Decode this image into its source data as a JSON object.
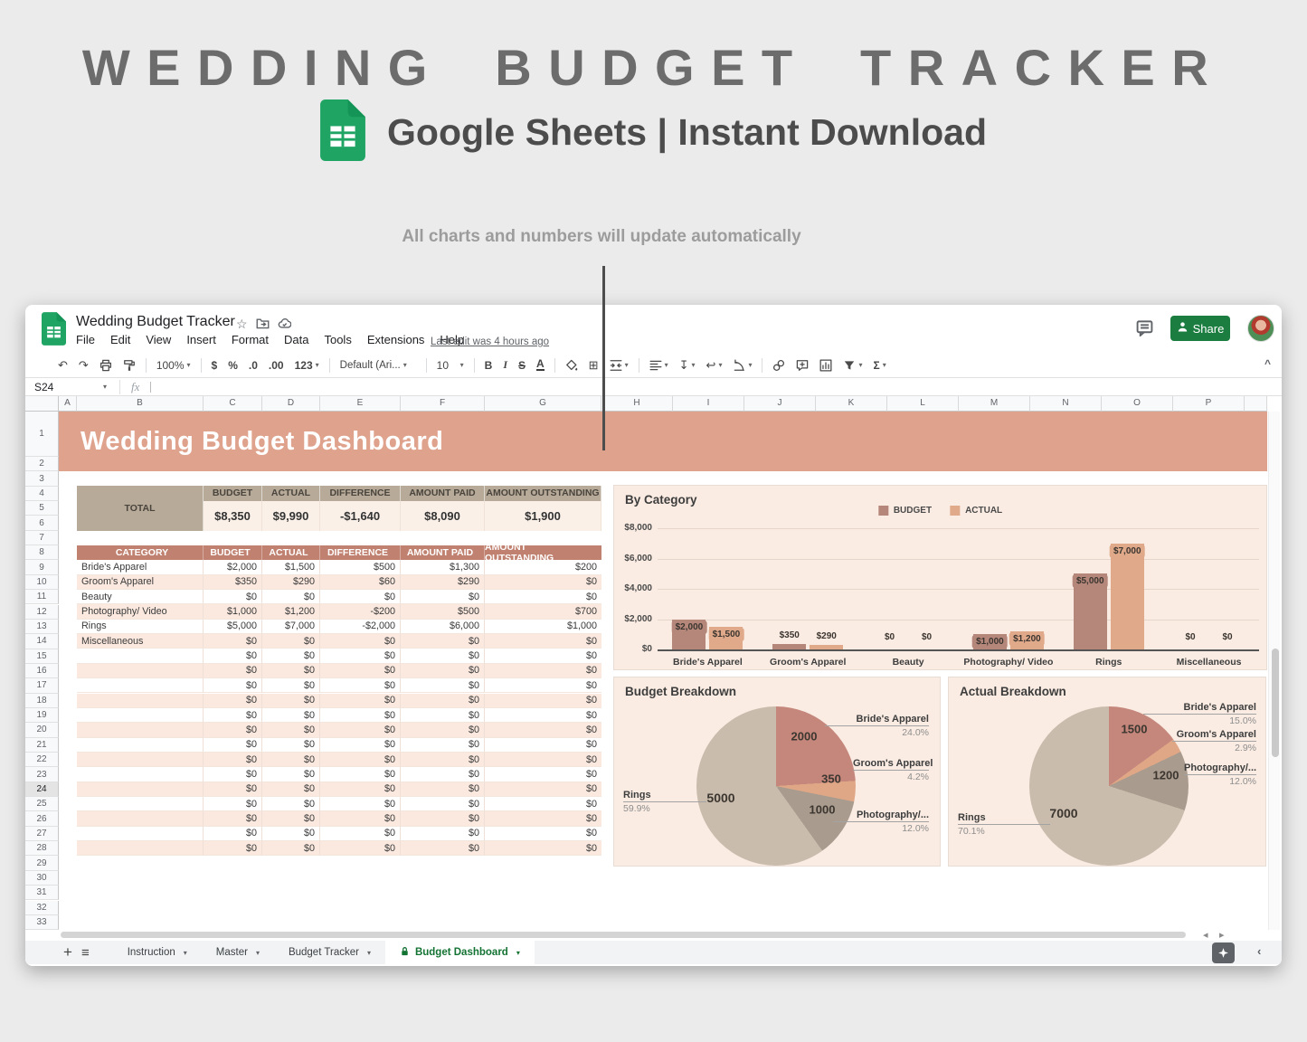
{
  "page": {
    "title": "WEDDING BUDGET TRACKER",
    "subtitle": "Google Sheets | Instant Download",
    "annotation": "All charts and numbers will update automatically"
  },
  "window": {
    "doc_title": "Wedding Budget Tracker",
    "menus": [
      "File",
      "Edit",
      "View",
      "Insert",
      "Format",
      "Data",
      "Tools",
      "Extensions",
      "Help"
    ],
    "last_edit": "Last edit was 4 hours ago",
    "share_label": "Share",
    "name_box": "S24",
    "toolbar_items": [
      {
        "name": "undo-icon",
        "glyph": "↶"
      },
      {
        "name": "redo-icon",
        "glyph": "↷"
      },
      {
        "name": "print-icon"
      },
      {
        "name": "paint-format-icon"
      },
      {
        "sep": true
      },
      {
        "name": "zoom-select",
        "text": "100%",
        "dd": true
      },
      {
        "sep": true
      },
      {
        "name": "currency-format-button",
        "text": "$"
      },
      {
        "name": "percent-format-button",
        "text": "%"
      },
      {
        "name": "decrease-decimals-button",
        "text": ".0"
      },
      {
        "name": "increase-decimals-button",
        "text": ".00"
      },
      {
        "name": "more-formats-button",
        "text": "123",
        "dd": true
      },
      {
        "sep": true
      },
      {
        "name": "font-select",
        "text": "Default (Ari...",
        "dd": true
      },
      {
        "sep": true
      },
      {
        "name": "font-size-select",
        "text": "10",
        "dd": true
      },
      {
        "sep": true
      },
      {
        "name": "bold-button",
        "text": "B"
      },
      {
        "name": "italic-button",
        "text": "I"
      },
      {
        "name": "strikethrough-button",
        "text": "S"
      },
      {
        "name": "text-color-button",
        "text": "A"
      },
      {
        "sep": true
      },
      {
        "name": "fill-color-icon"
      },
      {
        "name": "borders-icon",
        "glyph": "⊞"
      },
      {
        "name": "merge-cells-icon",
        "dd": true
      },
      {
        "sep": true
      },
      {
        "name": "horizontal-align-icon",
        "dd": true
      },
      {
        "name": "vertical-align-icon",
        "glyph": "↧",
        "dd": true
      },
      {
        "name": "text-wrap-icon",
        "glyph": "↩",
        "dd": true
      },
      {
        "name": "text-rotate-icon",
        "dd": true
      },
      {
        "sep": true
      },
      {
        "name": "link-icon"
      },
      {
        "name": "add-comment-icon"
      },
      {
        "name": "insert-chart-icon"
      },
      {
        "name": "filter-icon",
        "dd": true
      },
      {
        "name": "functions-button",
        "text": "Σ",
        "dd": true
      }
    ],
    "column_headers": [
      "A",
      "B",
      "C",
      "D",
      "E",
      "F",
      "G",
      "H",
      "I",
      "J",
      "K",
      "L",
      "M",
      "N",
      "O",
      "P"
    ],
    "row_count": 33,
    "selected_row": 24,
    "sheet_tabs": [
      {
        "label": "Instruction"
      },
      {
        "label": "Master"
      },
      {
        "label": "Budget Tracker"
      },
      {
        "label": "Budget Dashboard",
        "active": true,
        "locked": true
      }
    ]
  },
  "sheet": {
    "banner_title": "Wedding Budget Dashboard",
    "total": {
      "label": "TOTAL",
      "headers": [
        "BUDGET",
        "ACTUAL",
        "DIFFERENCE",
        "AMOUNT PAID",
        "AMOUNT OUTSTANDING"
      ],
      "values": [
        "$8,350",
        "$9,990",
        "-$1,640",
        "$8,090",
        "$1,900"
      ]
    },
    "category_table": {
      "headers": [
        "CATEGORY",
        "BUDGET",
        "ACTUAL",
        "DIFFERENCE",
        "AMOUNT PAID",
        "AMOUNT OUTSTANDING"
      ],
      "rows": [
        [
          "Bride's Apparel",
          "$2,000",
          "$1,500",
          "$500",
          "$1,300",
          "$200"
        ],
        [
          "Groom's Apparel",
          "$350",
          "$290",
          "$60",
          "$290",
          "$0"
        ],
        [
          "Beauty",
          "$0",
          "$0",
          "$0",
          "$0",
          "$0"
        ],
        [
          "Photography/ Video",
          "$1,000",
          "$1,200",
          "-$200",
          "$500",
          "$700"
        ],
        [
          "Rings",
          "$5,000",
          "$7,000",
          "-$2,000",
          "$6,000",
          "$1,000"
        ],
        [
          "Miscellaneous",
          "$0",
          "$0",
          "$0",
          "$0",
          "$0"
        ]
      ],
      "empty_row_values": [
        "",
        "$0",
        "$0",
        "$0",
        "$0",
        "$0"
      ],
      "empty_row_count": 14
    }
  },
  "chart_data": [
    {
      "type": "bar",
      "title": "By Category",
      "categories": [
        "Bride's Apparel",
        "Groom's Apparel",
        "Beauty",
        "Photography/ Video",
        "Rings",
        "Miscellaneous"
      ],
      "series": [
        {
          "name": "BUDGET",
          "color": "#b5877b",
          "values": [
            2000,
            350,
            0,
            1000,
            5000,
            0
          ],
          "labels": [
            "$2,000",
            "$350",
            "$0",
            "$1,000",
            "$5,000",
            "$0"
          ]
        },
        {
          "name": "ACTUAL",
          "color": "#dfa98a",
          "values": [
            1500,
            290,
            0,
            1200,
            7000,
            0
          ],
          "labels": [
            "$1,500",
            "$290",
            "$0",
            "$1,200",
            "$7,000",
            "$0"
          ]
        }
      ],
      "ylim": [
        0,
        8000
      ],
      "yticks": [
        "$8,000",
        "$6,000",
        "$4,000",
        "$2,000",
        "$0"
      ],
      "grid": true,
      "legend_position": "top"
    },
    {
      "type": "pie",
      "title": "Budget Breakdown",
      "labels": [
        "Bride's Apparel",
        "Groom's Apparel",
        "Photography/ Video",
        "Rings"
      ],
      "values": [
        2000,
        350,
        1000,
        5000
      ],
      "colors": [
        "#c5877b",
        "#e0a787",
        "#a99b8d",
        "#c9bcac"
      ],
      "value_labels": [
        "2000",
        "350",
        "1000",
        "5000"
      ],
      "callouts": [
        {
          "label": "Bride's Apparel",
          "pct": "24.0%"
        },
        {
          "label": "Groom's Apparel",
          "pct": "4.2%"
        },
        {
          "label": "Photography/...",
          "pct": "12.0%"
        },
        {
          "label": "Rings",
          "pct": "59.9%"
        }
      ]
    },
    {
      "type": "pie",
      "title": "Actual Breakdown",
      "labels": [
        "Bride's Apparel",
        "Groom's Apparel",
        "Photography/ Video",
        "Rings"
      ],
      "values": [
        1500,
        290,
        1200,
        7000
      ],
      "colors": [
        "#c5877b",
        "#e0a787",
        "#a99b8d",
        "#c9bcac"
      ],
      "value_labels": [
        "1500",
        "",
        "1200",
        "7000"
      ],
      "callouts": [
        {
          "label": "Bride's Apparel",
          "pct": "15.0%"
        },
        {
          "label": "Groom's Apparel",
          "pct": "2.9%"
        },
        {
          "label": "Photography/...",
          "pct": "12.0%"
        },
        {
          "label": "Rings",
          "pct": "70.1%"
        }
      ]
    }
  ],
  "colors": {
    "banner": "#dfa28c",
    "total_header": "#b7aa99",
    "total_value_bg": "#faf0e8",
    "category_header": "#c08170",
    "alt_row": "#fbe9df",
    "panel_bg": "#faece3",
    "budget_bar": "#b5877b",
    "actual_bar": "#dfa98a",
    "share_green": "#1b7d3f",
    "active_tab_green": "#137333"
  },
  "icons": {
    "star-icon": "☆",
    "dropdown-icon": "▾",
    "add-sheet-icon": "+",
    "all-sheets-icon": "≡",
    "scroll-left-icon": "◂",
    "scroll-right-icon": "▸",
    "collapse-toolbar-icon": "^",
    "hide-panel-icon": "‹"
  }
}
